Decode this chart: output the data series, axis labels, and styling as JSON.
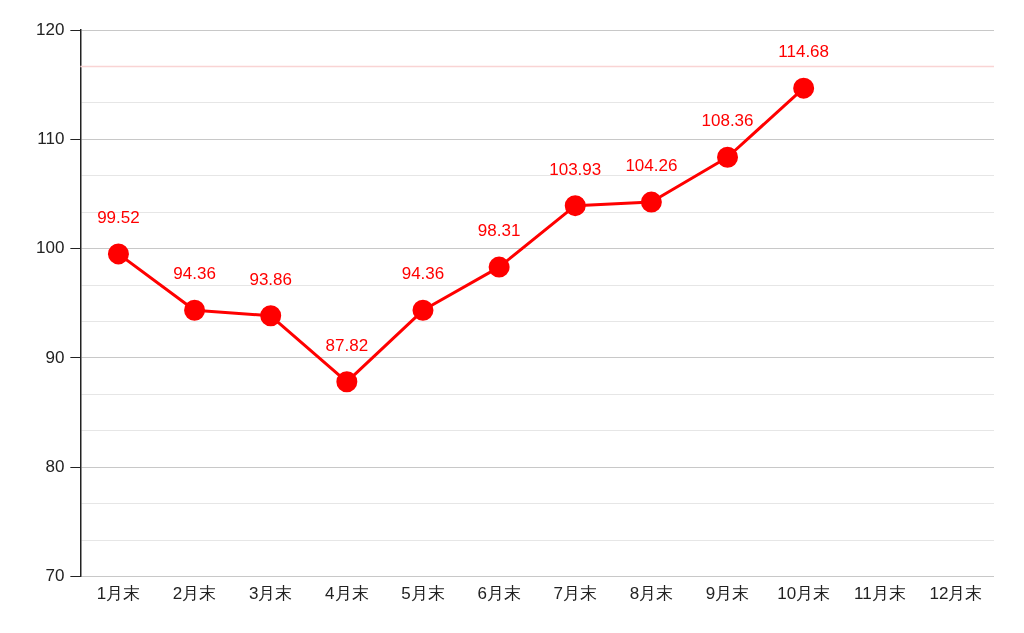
{
  "chart_data": {
    "type": "line",
    "categories": [
      "1月末",
      "2月末",
      "3月末",
      "4月末",
      "5月末",
      "6月末",
      "7月末",
      "8月末",
      "9月末",
      "10月末",
      "11月末",
      "12月末"
    ],
    "series": [
      {
        "color": "#ff0000",
        "values": [
          99.52,
          94.36,
          93.86,
          87.82,
          94.36,
          98.31,
          103.93,
          104.26,
          108.36,
          114.68,
          null,
          null
        ]
      }
    ],
    "ylim": [
      70,
      120
    ],
    "yticks": [
      70,
      {
        "value": 73.33,
        "label": null
      },
      {
        "value": 76.67,
        "label": null
      },
      80,
      {
        "value": 83.33,
        "label": null
      },
      {
        "value": 86.67,
        "label": null
      },
      90,
      {
        "value": 93.33,
        "label": null
      },
      {
        "value": 96.67,
        "label": null
      },
      100,
      {
        "value": 103.33,
        "label": null
      },
      {
        "value": 106.67,
        "label": null
      },
      110,
      {
        "value": 113.33,
        "label": null
      },
      120
    ],
    "ref_lines": [
      {
        "axis": "y",
        "value": 116.67,
        "color": "#f9d4d4"
      }
    ],
    "grid": "y",
    "legend": false,
    "marker": "circle",
    "line_style": "solid",
    "data_labels": true
  }
}
